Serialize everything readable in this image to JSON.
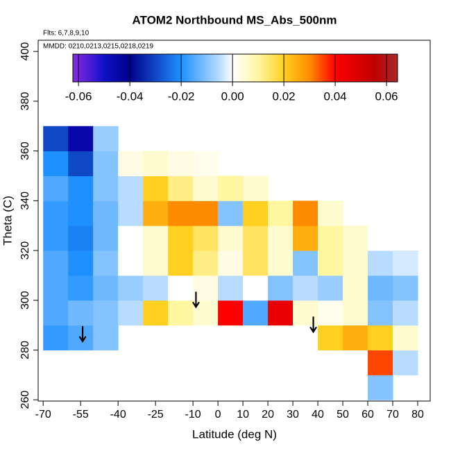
{
  "chart_data": {
    "type": "heatmap",
    "title": "ATOM2 Northbound MS_Abs_500nm",
    "notes": [
      "Flts: 6,7,8,9,10",
      "MMDD: 0210,0213,0215,0218,0219"
    ],
    "x_label": "Latitude (deg N)",
    "y_label": "Theta (C)",
    "xlim": [
      -72,
      85
    ],
    "ylim": [
      259.5,
      404.5
    ],
    "xticks": [
      -70,
      -55,
      -40,
      -25,
      -10,
      0,
      10,
      20,
      30,
      40,
      50,
      60,
      70,
      80
    ],
    "yticks": [
      260,
      280,
      300,
      320,
      340,
      360,
      380,
      400
    ],
    "x": [
      -65,
      -55,
      -45,
      -35,
      -25,
      -15,
      -5,
      5,
      15,
      25,
      35,
      45,
      55,
      65,
      75
    ],
    "y": [
      265,
      275,
      285,
      295,
      305,
      315,
      325,
      335,
      345,
      355,
      365
    ],
    "values": [
      [
        null,
        null,
        null,
        null,
        null,
        null,
        null,
        null,
        null,
        null,
        null,
        null,
        null,
        -0.01,
        null
      ],
      [
        null,
        null,
        null,
        null,
        null,
        null,
        null,
        null,
        null,
        null,
        null,
        null,
        null,
        0.035,
        -0.005
      ],
      [
        -0.018,
        -0.015,
        -0.01,
        null,
        null,
        null,
        null,
        null,
        null,
        null,
        null,
        0.02,
        0.025,
        0.02,
        0.005
      ],
      [
        -0.015,
        -0.012,
        -0.01,
        -0.005,
        0.02,
        0.01,
        0.005,
        0.04,
        -0.015,
        0.045,
        0.005,
        0.002,
        0.005,
        -0.01,
        -0.005
      ],
      [
        -0.015,
        -0.018,
        -0.012,
        -0.008,
        -0.005,
        0.0,
        0.003,
        -0.005,
        0.0,
        -0.01,
        -0.005,
        -0.008,
        0.005,
        -0.012,
        -0.01
      ],
      [
        -0.015,
        -0.02,
        -0.01,
        0.0,
        0.005,
        0.02,
        0.012,
        0.003,
        0.015,
        0.005,
        -0.01,
        0.01,
        0.005,
        -0.005,
        -0.003
      ],
      [
        -0.018,
        -0.022,
        -0.012,
        0.0,
        0.005,
        0.02,
        0.015,
        0.005,
        0.015,
        0.005,
        0.025,
        0.01,
        0.005,
        0.0,
        null
      ],
      [
        -0.018,
        -0.02,
        -0.012,
        -0.005,
        0.025,
        0.03,
        0.03,
        -0.01,
        0.02,
        0.01,
        0.03,
        0.005,
        null,
        null,
        null
      ],
      [
        -0.015,
        -0.02,
        -0.01,
        -0.005,
        0.02,
        0.012,
        0.005,
        0.01,
        0.005,
        null,
        null,
        null,
        null,
        null,
        null
      ],
      [
        -0.02,
        -0.03,
        -0.01,
        0.003,
        0.005,
        0.003,
        0.002,
        null,
        null,
        null,
        null,
        null,
        null,
        null,
        null
      ],
      [
        -0.03,
        -0.045,
        -0.008,
        null,
        null,
        null,
        null,
        null,
        null,
        null,
        null,
        null,
        null,
        null,
        null
      ]
    ],
    "colormap": {
      "stops": [
        -0.0622,
        -0.05,
        -0.04,
        -0.02,
        -0.005,
        0,
        0.01,
        0.02,
        0.03,
        0.04,
        0.055,
        0.0643
      ],
      "colors": [
        "#8a2be2",
        "#1010c8",
        "#00008b",
        "#1e90ff",
        "#b8dcff",
        "#ffffff",
        "#fff6a0",
        "#ffd020",
        "#ff8c00",
        "#ff0000",
        "#c00000",
        "#a52a2a"
      ]
    },
    "clim": [
      -0.0622,
      0.0643
    ],
    "cticks": [
      -0.06,
      -0.04,
      -0.02,
      {
        "value": 0,
        "label": "0.00"
      },
      0.02,
      0.04,
      0.06
    ],
    "markers": {
      "x": [
        -54.2,
        -8.8,
        38.2
      ],
      "y": [
        283.5,
        297.3,
        287.3
      ]
    }
  }
}
